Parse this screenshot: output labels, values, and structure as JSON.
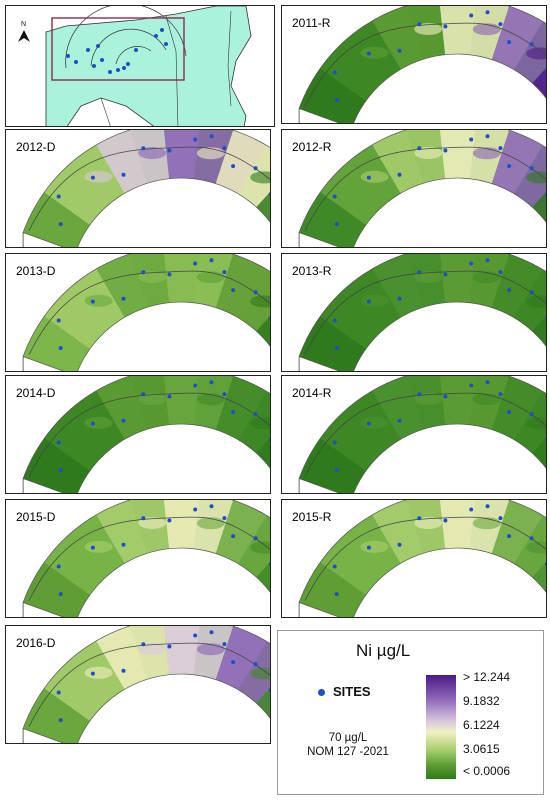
{
  "overview": {
    "north_label": "N"
  },
  "panels": [
    {
      "label": "2011-R",
      "palette": [
        "#2f7a1c",
        "#3f8a26",
        "#5f9e35",
        "#f0eec0",
        "#8a63b6",
        "#4b1a86"
      ]
    },
    {
      "label": "2012-D",
      "palette": [
        "#6aa83e",
        "#a9cf70",
        "#d9c9dd",
        "#8a63b6",
        "#f0eec0",
        "#2f7a1c"
      ]
    },
    {
      "label": "2012-R",
      "palette": [
        "#3f8a26",
        "#6aa83e",
        "#a9cf70",
        "#f0eec0",
        "#8a63b6",
        "#2f7a1c"
      ]
    },
    {
      "label": "2013-D",
      "palette": [
        "#7db64a",
        "#a3cc68",
        "#6aa83e",
        "#8cc056",
        "#5f9e35",
        "#2f7a1c"
      ]
    },
    {
      "label": "2013-R",
      "palette": [
        "#2f7a1c",
        "#3f8a26",
        "#4b9230",
        "#5f9e35",
        "#3f8a26",
        "#2f7a1c"
      ]
    },
    {
      "label": "2014-D",
      "palette": [
        "#2f7a1c",
        "#3f8a26",
        "#5f9e35",
        "#6aa83e",
        "#3f8a26",
        "#2f7a1c"
      ]
    },
    {
      "label": "2014-R",
      "palette": [
        "#2f7a1c",
        "#3f8a26",
        "#4b9230",
        "#5f9e35",
        "#3f8a26",
        "#2f7a1c"
      ]
    },
    {
      "label": "2015-D",
      "palette": [
        "#5f9e35",
        "#7db64a",
        "#a9cf70",
        "#f0eec0",
        "#6aa83e",
        "#3f8a26"
      ]
    },
    {
      "label": "2015-R",
      "palette": [
        "#5f9e35",
        "#7db64a",
        "#a9cf70",
        "#f0eec0",
        "#6aa83e",
        "#4b9230"
      ]
    },
    {
      "label": "2016-D",
      "palette": [
        "#6aa83e",
        "#a9cf70",
        "#f0eec0",
        "#d9c9dd",
        "#8a63b6",
        "#3f8a26"
      ]
    }
  ],
  "legend": {
    "title": "Ni µg/L",
    "sites_label": "SITES",
    "limit_value": "70 µg/L",
    "limit_norm": "NOM 127 -2021",
    "ticks": [
      "> 12.244",
      "9.1832",
      "6.1224",
      "3.0615",
      "< 0.0006"
    ],
    "colors": {
      "high": "#4b1a86",
      "mid": "#f2f0c2",
      "low": "#2f7a1c",
      "sites": "#1f4fc4"
    }
  }
}
